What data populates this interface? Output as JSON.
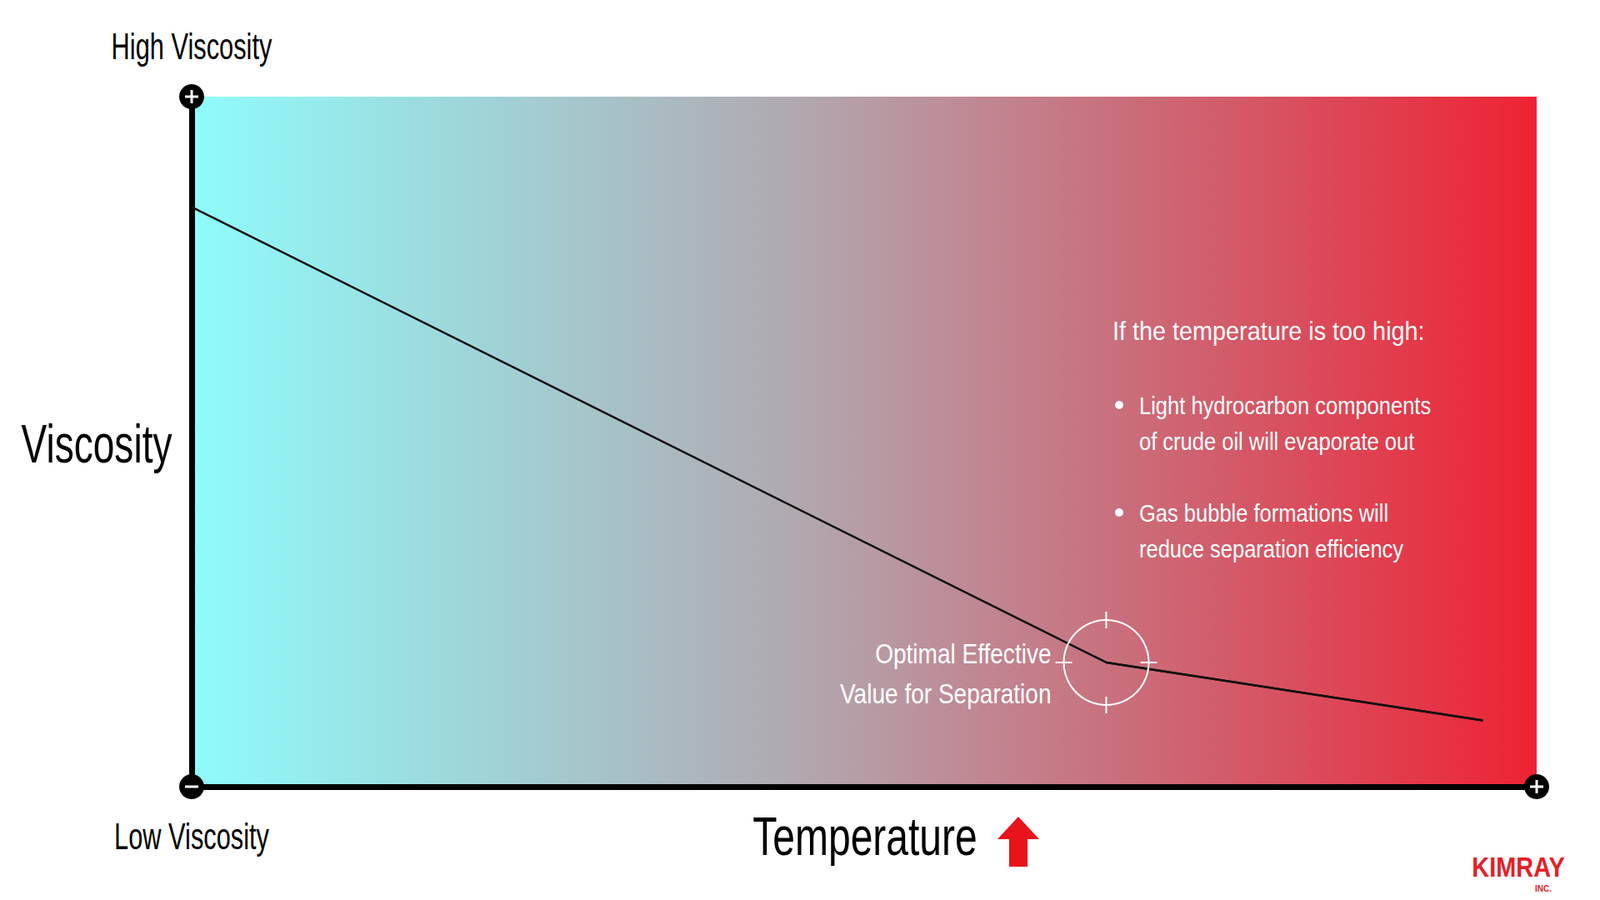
{
  "chart_data": {
    "type": "line",
    "x_label": "Temperature",
    "y_label": "Viscosity",
    "y_high_label": "High Viscosity",
    "y_low_label": "Low Viscosity",
    "x": [
      0,
      68,
      96
    ],
    "values": [
      84,
      18,
      9.6
    ],
    "color": "#111111",
    "xlim": [
      0,
      100
    ],
    "ylim": [
      0,
      100
    ],
    "tick_labels": false,
    "grid": false,
    "optimal": {
      "lines": [
        "Optimal Effective",
        "Value for Separation"
      ],
      "x": 68,
      "y": 18
    },
    "note": {
      "heading": "If the temperature is too high:",
      "bullets": [
        [
          "Light hydrocarbon components",
          "of crude oil will evaporate out"
        ],
        [
          "Gas bubble formations will",
          "reduce separation efficiency"
        ]
      ]
    },
    "logo": [
      "KIMRAY",
      "INC."
    ]
  }
}
